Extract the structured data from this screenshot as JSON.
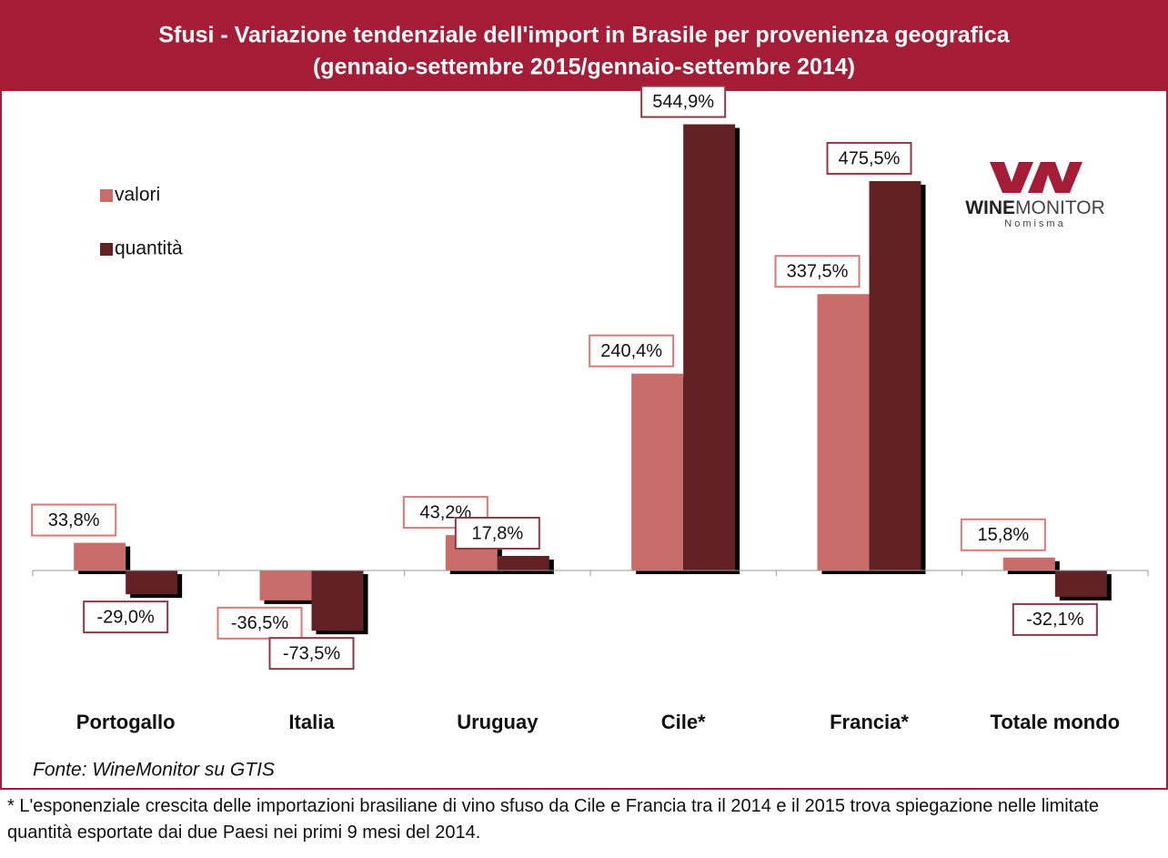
{
  "chart_data": {
    "type": "bar",
    "title": "Sfusi - Variazione tendenziale dell'import in Brasile per provenienza geografica",
    "subtitle": "(gennaio-settembre 2015/gennaio-settembre 2014)",
    "categories": [
      "Portogallo",
      "Italia",
      "Uruguay",
      "Cile*",
      "Francia*",
      "Totale mondo"
    ],
    "series": [
      {
        "name": "valori",
        "color": "#c96d6a",
        "values": [
          33.8,
          -36.5,
          43.2,
          240.4,
          337.5,
          15.8
        ],
        "value_labels": [
          "33,8%",
          "-36,5%",
          "43,2%",
          "240,4%",
          "337,5%",
          "15,8%"
        ]
      },
      {
        "name": "quantità",
        "color": "#622124",
        "values": [
          -29.0,
          -73.5,
          17.8,
          544.9,
          475.5,
          -32.1
        ],
        "value_labels": [
          "-29,0%",
          "-73,5%",
          "17,8%",
          "544,9%",
          "475,5%",
          "-32,1%"
        ]
      }
    ],
    "ylim": [
      -150,
      550
    ],
    "source": "Fonte: WineMonitor su GTIS",
    "footnote": "* L'esponenziale crescita delle importazioni brasiliane di vino sfuso da Cile e Francia tra il 2014 e il 2015 trova spiegazione nelle limitate quantità esportate dai due Paesi nei primi 9 mesi del 2014.",
    "logo": {
      "brand_bold": "WINE",
      "brand": "MONITOR",
      "sub": "Nomisma"
    }
  }
}
